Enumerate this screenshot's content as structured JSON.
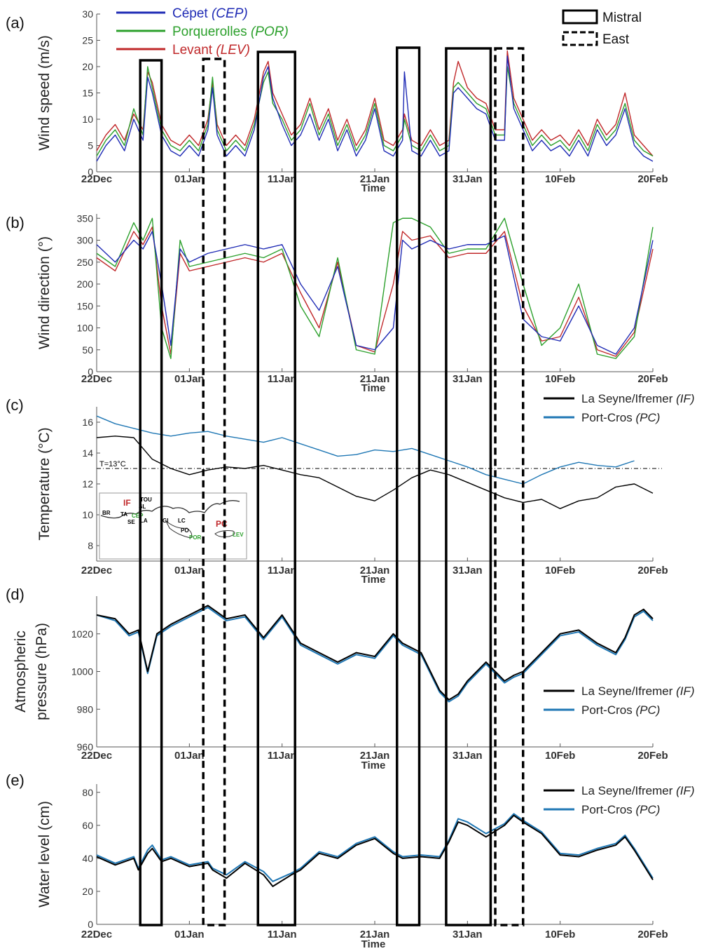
{
  "x_ticks": [
    "22Dec",
    "01Jan",
    "11Jan",
    "21Jan",
    "31Jan",
    "10Feb",
    "20Feb"
  ],
  "x_label": "Time",
  "panels": [
    {
      "id": "a",
      "label": "(a)",
      "ylabel": "Wind speed (m/s)",
      "ylim": [
        0,
        30
      ],
      "yticks": [
        0,
        5,
        10,
        15,
        20,
        25,
        30
      ]
    },
    {
      "id": "b",
      "label": "(b)",
      "ylabel": "Wind direction (°)",
      "ylim": [
        0,
        360
      ],
      "yticks": [
        0,
        50,
        100,
        150,
        200,
        250,
        300,
        350
      ]
    },
    {
      "id": "c",
      "label": "(c)",
      "ylabel": "Temperature (°C)",
      "ylim": [
        7,
        17
      ],
      "yticks": [
        8,
        10,
        12,
        14,
        16
      ],
      "threshold_label": "T=13°C",
      "threshold": 13
    },
    {
      "id": "d",
      "label": "(d)",
      "ylabel_line1": "Atmospheric",
      "ylabel_line2": "pressure (hPa)",
      "ylim": [
        960,
        1040
      ],
      "yticks": [
        960,
        980,
        1000,
        1020
      ]
    },
    {
      "id": "e",
      "label": "(e)",
      "ylabel": "Water level (cm)",
      "ylim": [
        0,
        85
      ],
      "yticks": [
        0,
        20,
        40,
        60,
        80
      ]
    }
  ],
  "wind_legend": [
    {
      "name": "Cépet",
      "code": "(CEP)",
      "color": "#1f2bb5"
    },
    {
      "name": "Porquerolles",
      "code": "(POR)",
      "color": "#2ca02c"
    },
    {
      "name": "Levant",
      "code": "(LEV)",
      "color": "#c0282a"
    }
  ],
  "event_legend": [
    {
      "name": "Mistral",
      "style": "solid"
    },
    {
      "name": "East",
      "style": "dashed"
    }
  ],
  "station_legend": [
    {
      "name": "La Seyne/Ifremer",
      "code": "(IF)",
      "color": "#000000"
    },
    {
      "name": "Port-Cros",
      "code": "(PC)",
      "color": "#1f77b4"
    }
  ],
  "inset_map": {
    "labels": [
      "TOU",
      "IF",
      "SL",
      "BR",
      "TA",
      "CEP",
      "SE",
      "LA",
      "GI",
      "LC",
      "PO",
      "POR",
      "PC",
      "LEV"
    ]
  },
  "chart_data": {
    "type": "line",
    "x_unit": "days since 22Dec",
    "x_range": [
      0,
      60
    ],
    "events": [
      {
        "type": "Mistral",
        "start": 4.7,
        "end": 7.0
      },
      {
        "type": "East",
        "start": 11.5,
        "end": 13.8
      },
      {
        "type": "Mistral",
        "start": 17.4,
        "end": 21.4
      },
      {
        "type": "Mistral",
        "start": 32.4,
        "end": 34.8
      },
      {
        "type": "Mistral",
        "start": 37.7,
        "end": 42.5
      },
      {
        "type": "East",
        "start": 43.0,
        "end": 46.0
      }
    ],
    "panel_a_wind_speed": {
      "x": [
        0,
        1,
        2,
        3,
        4,
        5,
        5.5,
        6,
        7,
        8,
        9,
        10,
        11,
        12,
        12.5,
        13,
        14,
        15,
        16,
        17,
        18,
        18.5,
        19,
        20,
        21,
        22,
        23,
        24,
        25,
        26,
        27,
        28,
        29,
        30,
        31,
        32,
        33,
        33.2,
        34,
        35,
        36,
        37,
        38,
        38.5,
        39,
        40,
        41,
        42,
        43,
        44,
        44.3,
        45,
        46,
        47,
        48,
        49,
        50,
        51,
        52,
        53,
        54,
        55,
        56,
        57,
        58,
        59,
        60
      ],
      "series": [
        {
          "name": "Cépet",
          "values": [
            2,
            5,
            7,
            4,
            10,
            6,
            18,
            15,
            7,
            4,
            3,
            5,
            3,
            8,
            16,
            7,
            3,
            5,
            3,
            8,
            18,
            20,
            14,
            9,
            5,
            7,
            11,
            6,
            10,
            4,
            8,
            3,
            6,
            12,
            4,
            3,
            6,
            19,
            4,
            3,
            6,
            3,
            4,
            15,
            16,
            14,
            12,
            11,
            6,
            6,
            22,
            12,
            8,
            4,
            6,
            4,
            5,
            3,
            6,
            3,
            8,
            5,
            7,
            12,
            5,
            3,
            2
          ]
        },
        {
          "name": "Porquerolles",
          "values": [
            3,
            6,
            8,
            5,
            12,
            7,
            20,
            16,
            8,
            5,
            4,
            6,
            4,
            9,
            18,
            8,
            4,
            6,
            4,
            9,
            17,
            19,
            13,
            10,
            6,
            8,
            13,
            7,
            11,
            5,
            9,
            4,
            7,
            13,
            5,
            4,
            7,
            10,
            5,
            4,
            7,
            4,
            5,
            16,
            17,
            15,
            13,
            12,
            7,
            7,
            20,
            13,
            9,
            5,
            7,
            5,
            6,
            4,
            7,
            4,
            9,
            6,
            8,
            13,
            6,
            4,
            3
          ]
        },
        {
          "name": "Levant",
          "values": [
            4,
            7,
            9,
            6,
            11,
            8,
            19,
            17,
            9,
            6,
            5,
            7,
            5,
            10,
            17,
            9,
            5,
            7,
            5,
            10,
            19,
            21,
            15,
            11,
            7,
            9,
            14,
            8,
            12,
            6,
            10,
            5,
            8,
            14,
            6,
            5,
            8,
            11,
            6,
            5,
            8,
            5,
            6,
            17,
            21,
            16,
            14,
            13,
            8,
            8,
            23,
            14,
            10,
            6,
            8,
            6,
            7,
            5,
            8,
            5,
            10,
            7,
            9,
            15,
            7,
            5,
            3
          ]
        }
      ]
    },
    "panel_b_wind_direction": {
      "x": [
        0,
        2,
        4,
        5,
        6,
        7,
        8,
        9,
        10,
        12,
        14,
        16,
        18,
        20,
        22,
        24,
        26,
        28,
        30,
        32,
        33,
        34,
        36,
        38,
        40,
        42,
        44,
        46,
        48,
        50,
        52,
        54,
        56,
        58,
        60
      ],
      "series": [
        {
          "name": "Cépet",
          "values": [
            290,
            250,
            300,
            280,
            320,
            200,
            60,
            280,
            250,
            270,
            280,
            290,
            280,
            290,
            200,
            140,
            240,
            60,
            50,
            100,
            300,
            280,
            300,
            280,
            290,
            290,
            310,
            120,
            80,
            70,
            150,
            60,
            40,
            100,
            300
          ]
        },
        {
          "name": "Porquerolles",
          "values": [
            270,
            240,
            340,
            300,
            350,
            100,
            30,
            300,
            240,
            250,
            260,
            270,
            260,
            280,
            150,
            80,
            260,
            50,
            40,
            340,
            350,
            350,
            330,
            270,
            280,
            280,
            350,
            200,
            60,
            100,
            200,
            40,
            30,
            80,
            330
          ]
        },
        {
          "name": "Levant",
          "values": [
            260,
            230,
            320,
            290,
            330,
            150,
            40,
            270,
            230,
            240,
            250,
            260,
            250,
            270,
            180,
            100,
            250,
            60,
            45,
            200,
            320,
            300,
            310,
            260,
            270,
            270,
            320,
            150,
            70,
            80,
            170,
            50,
            35,
            90,
            280
          ]
        }
      ]
    },
    "panel_c_temperature": {
      "x": [
        0,
        2,
        4,
        6,
        8,
        10,
        12,
        14,
        16,
        18,
        20,
        22,
        24,
        26,
        28,
        30,
        32,
        34,
        36,
        38,
        40,
        42,
        44,
        46,
        48,
        50,
        52,
        54,
        56,
        58,
        60
      ],
      "series": [
        {
          "name": "La Seyne/Ifremer",
          "values": [
            15.0,
            15.1,
            15.0,
            13.6,
            13.0,
            12.6,
            12.9,
            13.1,
            13.0,
            13.2,
            12.9,
            12.6,
            12.4,
            11.8,
            11.2,
            10.9,
            11.6,
            12.4,
            12.9,
            12.6,
            12.1,
            11.6,
            11.1,
            10.8,
            11.0,
            10.4,
            10.9,
            11.1,
            11.8,
            12.0,
            11.4
          ]
        },
        {
          "name": "Port-Cros",
          "values": [
            16.4,
            15.9,
            15.6,
            15.3,
            15.1,
            15.3,
            15.4,
            15.1,
            14.9,
            14.7,
            15.0,
            14.6,
            14.2,
            13.8,
            13.9,
            14.2,
            14.1,
            14.3,
            13.9,
            13.5,
            13.1,
            12.6,
            12.3,
            12.0,
            12.6,
            13.1,
            13.4,
            13.2,
            13.1,
            13.5,
            null
          ]
        }
      ]
    },
    "panel_d_pressure": {
      "x": [
        0,
        2,
        3.5,
        4.5,
        5.5,
        6.5,
        8,
        10,
        12,
        14,
        16,
        18,
        20,
        22,
        24,
        26,
        28,
        30,
        32,
        33,
        35,
        37,
        38,
        39,
        40,
        42,
        44,
        45,
        46,
        48,
        50,
        52,
        54,
        56,
        57,
        58,
        59,
        60
      ],
      "series": [
        {
          "name": "La Seyne/Ifremer",
          "values": [
            1030,
            1028,
            1020,
            1022,
            1000,
            1020,
            1025,
            1030,
            1035,
            1028,
            1030,
            1018,
            1030,
            1015,
            1010,
            1005,
            1010,
            1008,
            1020,
            1015,
            1010,
            990,
            985,
            988,
            995,
            1005,
            995,
            998,
            1000,
            1010,
            1020,
            1022,
            1015,
            1010,
            1018,
            1030,
            1033,
            1028
          ]
        },
        {
          "name": "Port-Cros",
          "values": [
            1030,
            1027,
            1019,
            1021,
            999,
            1019,
            1024,
            1029,
            1034,
            1027,
            1029,
            1017,
            1029,
            1014,
            1009,
            1004,
            1009,
            1007,
            1019,
            1014,
            1009,
            989,
            984,
            987,
            994,
            1004,
            994,
            997,
            999,
            1009,
            1019,
            1021,
            1014,
            1009,
            1017,
            1029,
            1032,
            1027
          ]
        }
      ]
    },
    "panel_e_water_level": {
      "x": [
        0,
        2,
        4,
        4.5,
        5.5,
        6,
        7,
        8,
        10,
        12,
        12.5,
        14,
        16,
        18,
        19,
        21,
        22,
        24,
        26,
        28,
        30,
        32,
        33,
        35,
        37,
        38,
        39,
        40,
        42,
        44,
        45,
        46,
        48,
        50,
        52,
        54,
        56,
        57,
        58,
        60
      ],
      "series": [
        {
          "name": "La Seyne/Ifremer",
          "values": [
            41,
            36,
            40,
            33,
            43,
            46,
            38,
            40,
            35,
            37,
            33,
            28,
            37,
            30,
            23,
            30,
            33,
            43,
            40,
            48,
            52,
            43,
            40,
            41,
            40,
            50,
            62,
            60,
            53,
            60,
            66,
            62,
            55,
            42,
            41,
            45,
            48,
            53,
            45,
            27
          ]
        },
        {
          "name": "Port-Cros",
          "values": [
            42,
            37,
            41,
            34,
            45,
            48,
            39,
            41,
            36,
            38,
            34,
            30,
            38,
            32,
            26,
            31,
            34,
            44,
            41,
            49,
            53,
            44,
            41,
            42,
            41,
            51,
            64,
            62,
            55,
            61,
            67,
            63,
            56,
            43,
            42,
            46,
            49,
            54,
            46,
            28
          ]
        }
      ]
    }
  }
}
